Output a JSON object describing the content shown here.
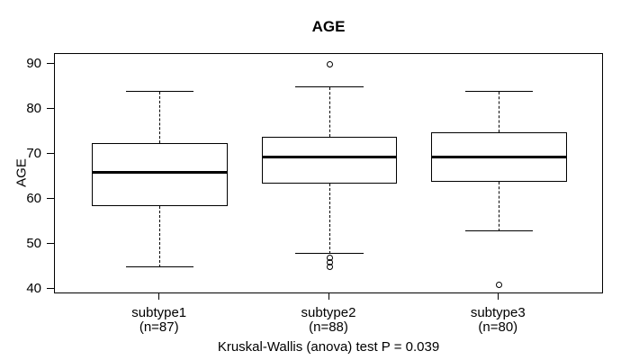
{
  "chart_data": {
    "type": "boxplot",
    "title": "AGE",
    "xlabel": "",
    "ylabel": "AGE",
    "caption": "Kruskal-Wallis (anova) test P = 0.039",
    "y_ticks": [
      40,
      50,
      60,
      70,
      80,
      90
    ],
    "ylim": [
      39,
      92.3
    ],
    "xlim": [
      0.38,
      3.62
    ],
    "box_width": 0.8,
    "cap_width": 0.4,
    "grid": false,
    "legend": null,
    "colors": {
      "stroke": "#000000",
      "median": "#000000",
      "box_fill": "#ffffff",
      "background": "#ffffff"
    },
    "groups": [
      {
        "label": "subtype1",
        "sublabel": "(n=87)",
        "n": 87,
        "position": 1,
        "whisker_low": 45,
        "q1": 58.5,
        "median": 66,
        "q3": 72.5,
        "whisker_high": 84,
        "outliers": []
      },
      {
        "label": "subtype2",
        "sublabel": "(n=88)",
        "n": 88,
        "position": 2,
        "whisker_low": 48,
        "q1": 63.5,
        "median": 69.5,
        "q3": 74,
        "whisker_high": 85,
        "outliers": [
          90,
          47,
          46,
          45
        ]
      },
      {
        "label": "subtype3",
        "sublabel": "(n=80)",
        "n": 80,
        "position": 3,
        "whisker_low": 53,
        "q1": 64,
        "median": 69.5,
        "q3": 75,
        "whisker_high": 84,
        "outliers": [
          41
        ]
      }
    ]
  }
}
